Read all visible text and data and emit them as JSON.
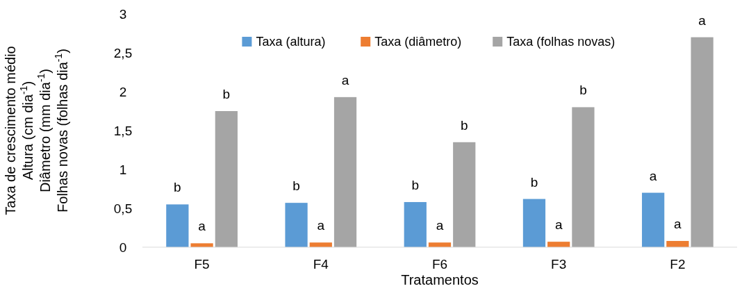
{
  "chart_data": {
    "type": "bar",
    "xlabel": "Tratamentos",
    "ylabel": "Taxa de crescimento médio\nAltura (cm dia$^{-1}$)\nDiâmetro (mm dia$^{-1}$)\nFolhas novas (folhas dia$^{-1}$)",
    "categories": [
      "F5",
      "F4",
      "F6",
      "F3",
      "F2"
    ],
    "series": [
      {
        "name": "Taxa (altura)",
        "color": "#5b9bd5",
        "values": [
          0.55,
          0.57,
          0.58,
          0.62,
          0.7
        ],
        "value_labels": [
          "b",
          "b",
          "b",
          "b",
          "a"
        ]
      },
      {
        "name": "Taxa (diâmetro)",
        "color": "#ed7d31",
        "values": [
          0.05,
          0.06,
          0.06,
          0.07,
          0.08
        ],
        "value_labels": [
          "a",
          "a",
          "a",
          "a",
          "a"
        ]
      },
      {
        "name": "Taxa (folhas novas)",
        "color": "#a5a5a5",
        "values": [
          1.75,
          1.93,
          1.35,
          1.8,
          2.7
        ],
        "value_labels": [
          "b",
          "a",
          "b",
          "b",
          "a"
        ]
      }
    ],
    "ylim": [
      0,
      3
    ],
    "yticks": [
      0,
      {
        "value": 0.5,
        "label": "0,5"
      },
      1,
      {
        "value": 1.5,
        "label": "1,5"
      },
      2,
      {
        "value": 2.5,
        "label": "2,5"
      },
      3
    ],
    "grid": false,
    "legend": "top"
  }
}
